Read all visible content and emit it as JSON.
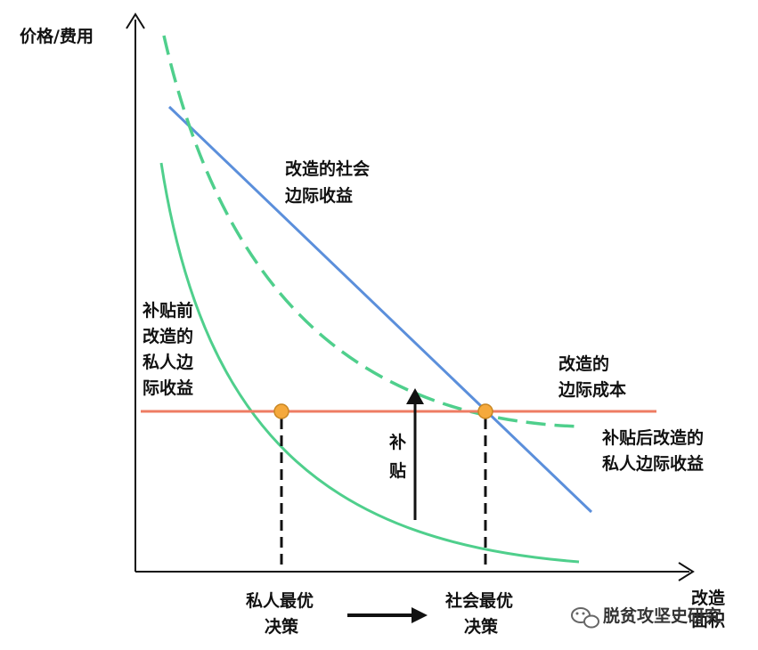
{
  "axes": {
    "y_label": "价格/费用",
    "x_label_lines": [
      "改造",
      "面积"
    ]
  },
  "curves": {
    "social_mb_lines": [
      "改造的社会",
      "边际收益"
    ],
    "private_mb_before_lines": [
      "补贴前",
      "改造的",
      "私人边",
      "际收益"
    ],
    "mc_lines": [
      "改造的",
      "边际成本"
    ],
    "private_mb_after_lines": [
      "补贴后改造的",
      "私人边际收益"
    ]
  },
  "subsidy": {
    "label_lines": [
      "补",
      "贴"
    ]
  },
  "decisions": {
    "private_lines": [
      "私人最优",
      "决策"
    ],
    "social_lines": [
      "社会最优",
      "决策"
    ]
  },
  "watermark": {
    "text": "脱贫攻坚史研究"
  },
  "colors": {
    "social_mb": "#5b8fdb",
    "private_mb": "#4fcf8c",
    "mc": "#ee7c63",
    "point_fill": "#f5a93c",
    "point_stroke": "#c98621",
    "axis": "#111111"
  }
}
